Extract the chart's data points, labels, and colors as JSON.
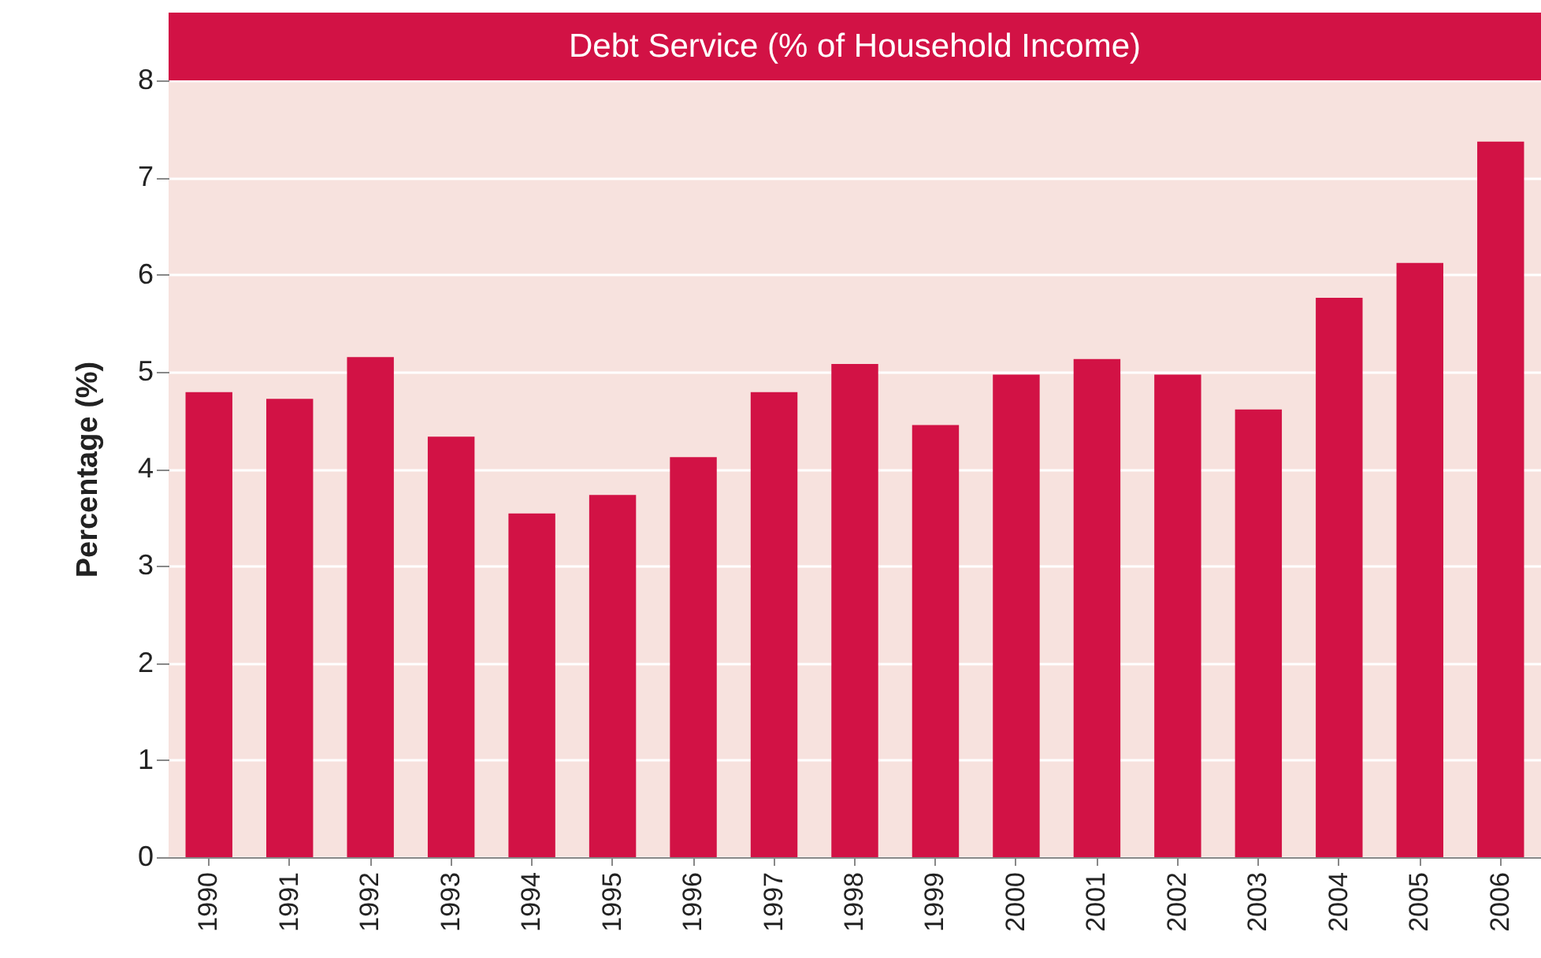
{
  "chart_data": {
    "type": "bar",
    "title": "Debt Service (% of Household Income)",
    "ylabel": "Percentage (%)",
    "categories": [
      "1990",
      "1991",
      "1992",
      "1993",
      "1994",
      "1995",
      "1996",
      "1997",
      "1998",
      "1999",
      "2000",
      "2001",
      "2002",
      "2003",
      "2004",
      "2005",
      "2006"
    ],
    "values": [
      4.79,
      4.72,
      5.15,
      4.33,
      3.54,
      3.73,
      4.12,
      4.79,
      5.08,
      4.45,
      4.97,
      5.13,
      4.97,
      4.61,
      5.76,
      6.12,
      7.37
    ],
    "color": "#d21245",
    "ylim": [
      0,
      8
    ],
    "yticks": [
      0,
      1,
      2,
      3,
      4,
      5,
      6,
      7,
      8
    ],
    "grid": "y"
  }
}
